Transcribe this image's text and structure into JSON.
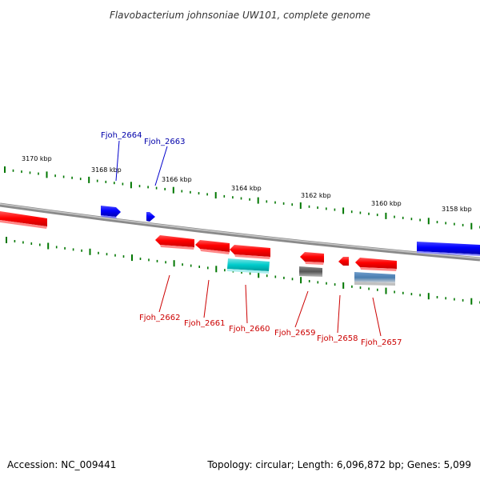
{
  "title": "Flavobacterium johnsoniae UW101, complete genome",
  "footer": {
    "accession": "Accession: NC_009441",
    "info": "Topology: circular; Length: 6,096,872 bp; Genes: 5,099"
  },
  "colors": {
    "forward_gene": "#0000ff",
    "reverse_gene": "#ff0000",
    "cyan_feature": "#00cccc",
    "gray_feature": "#666666",
    "steel_feature": "#4a7eb0",
    "tick_green": "#007700",
    "backbone": "#777777",
    "forward_label": "#0000aa",
    "reverse_label": "#cc0000"
  },
  "ticks": [
    {
      "label": "3170 kbp"
    },
    {
      "label": "3168 kbp"
    },
    {
      "label": "3166 kbp"
    },
    {
      "label": "3164 kbp"
    },
    {
      "label": "3162 kbp"
    },
    {
      "label": "3160 kbp"
    },
    {
      "label": "3158 kbp"
    }
  ],
  "genes": [
    {
      "label": "Fjoh_2664",
      "strand": "forward"
    },
    {
      "label": "Fjoh_2663",
      "strand": "forward"
    },
    {
      "label": "Fjoh_2662",
      "strand": "reverse"
    },
    {
      "label": "Fjoh_2661",
      "strand": "reverse"
    },
    {
      "label": "Fjoh_2660",
      "strand": "reverse"
    },
    {
      "label": "Fjoh_2659",
      "strand": "reverse"
    },
    {
      "label": "Fjoh_2658",
      "strand": "reverse"
    },
    {
      "label": "Fjoh_2657",
      "strand": "reverse"
    }
  ]
}
